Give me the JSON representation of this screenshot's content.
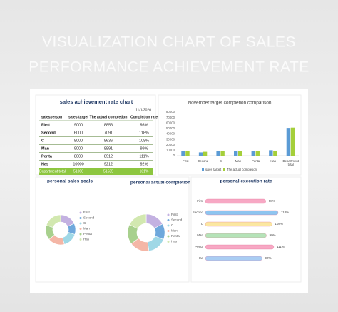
{
  "header": {
    "title": [
      "VISUALIZATION CHART OF SALES",
      "PERFORMANCE ACHIEVEMENT RATE"
    ]
  },
  "table": {
    "title": "sales achievement rate chart",
    "date": "11/1/2020",
    "headers": [
      "salesperson",
      "sales target",
      "The actual completion",
      "Completion rate"
    ],
    "rows": [
      [
        "First",
        9000,
        8856,
        "98%"
      ],
      [
        "Second",
        6000,
        7091,
        "118%"
      ],
      [
        "C",
        8000,
        8636,
        "108%"
      ],
      [
        "Man",
        9000,
        8891,
        "99%"
      ],
      [
        "Penta",
        8000,
        8912,
        "111%"
      ],
      [
        "Has",
        10000,
        9212,
        "92%"
      ]
    ],
    "total": [
      "Department total",
      51000,
      51535,
      "101%"
    ]
  },
  "chart_data": [
    {
      "type": "bar",
      "title": "November target completion comparison",
      "categories": [
        "First",
        "Second",
        "C",
        "Man",
        "Penta",
        "Has",
        "Department total"
      ],
      "series": [
        {
          "name": "sales target",
          "color": "#5b9bd5",
          "values": [
            9000,
            6000,
            8000,
            9000,
            8000,
            10000,
            51000
          ]
        },
        {
          "name": "The actual completion",
          "color": "#a5cf3a",
          "values": [
            8856,
            7091,
            8636,
            8891,
            8912,
            9212,
            51535
          ]
        }
      ],
      "ylim": [
        0,
        80000
      ],
      "yticks": [
        0,
        10000,
        20000,
        30000,
        40000,
        50000,
        60000,
        70000,
        80000
      ]
    },
    {
      "type": "pie",
      "title": "personal sales goals",
      "categories": [
        "First",
        "Second",
        "C",
        "Man",
        "Penta",
        "Has"
      ],
      "values": [
        9000,
        6000,
        8000,
        9000,
        8000,
        10000
      ],
      "colors": [
        "#c3b1e1",
        "#6fa8dc",
        "#9fd8e6",
        "#f4b6a6",
        "#a8d08d",
        "#d2e8b0"
      ]
    },
    {
      "type": "pie",
      "title": "personal actual completion",
      "categories": [
        "First",
        "Second",
        "C",
        "Man",
        "Penta",
        "Has"
      ],
      "values": [
        8856,
        7091,
        8636,
        8891,
        8912,
        9212
      ],
      "colors": [
        "#c3b1e1",
        "#6fa8dc",
        "#9fd8e6",
        "#f4b6a6",
        "#a8d08d",
        "#d2e8b0"
      ]
    },
    {
      "type": "hbar",
      "title": "personal execution rate",
      "categories": [
        "First",
        "Second",
        "C",
        "Man",
        "Penta",
        "Has"
      ],
      "values": [
        98,
        118,
        108,
        99,
        111,
        92
      ],
      "value_labels": [
        "98%",
        "118%",
        "108%",
        "99%",
        "111%",
        "92%"
      ],
      "colors": [
        "#f7a8c4",
        "#8ec5f0",
        "#fbe7a1",
        "#b5e3b8",
        "#f7a8c4",
        "#a9cdf3"
      ]
    }
  ]
}
